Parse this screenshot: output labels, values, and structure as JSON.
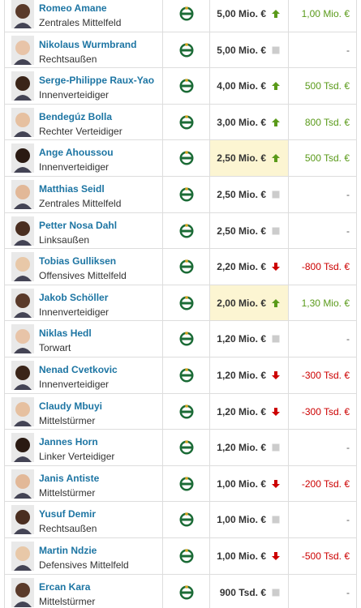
{
  "table": {
    "rows": [
      {
        "name": "Romeo Amane",
        "position": "Zentrales Mittelfeld",
        "value": "5,00 Mio. €",
        "trend": "up",
        "change": "1,00 Mio. €"
      },
      {
        "name": "Nikolaus Wurmbrand",
        "position": "Rechtsaußen",
        "value": "5,00 Mio. €",
        "trend": "none",
        "change": "-"
      },
      {
        "name": "Serge-Philippe Raux-Yao",
        "position": "Innenverteidiger",
        "value": "4,00 Mio. €",
        "trend": "up",
        "change": "500 Tsd. €"
      },
      {
        "name": "Bendegúz Bolla",
        "position": "Rechter Verteidiger",
        "value": "3,00 Mio. €",
        "trend": "up",
        "change": "800 Tsd. €"
      },
      {
        "name": "Ange Ahoussou",
        "position": "Innenverteidiger",
        "value": "2,50 Mio. €",
        "trend": "up",
        "change": "500 Tsd. €",
        "highlight": true
      },
      {
        "name": "Matthias Seidl",
        "position": "Zentrales Mittelfeld",
        "value": "2,50 Mio. €",
        "trend": "none",
        "change": "-"
      },
      {
        "name": "Petter Nosa Dahl",
        "position": "Linksaußen",
        "value": "2,50 Mio. €",
        "trend": "none",
        "change": "-"
      },
      {
        "name": "Tobias Gulliksen",
        "position": "Offensives Mittelfeld",
        "value": "2,20 Mio. €",
        "trend": "down",
        "change": "-800 Tsd. €"
      },
      {
        "name": "Jakob Schöller",
        "position": "Innenverteidiger",
        "value": "2,00 Mio. €",
        "trend": "up",
        "change": "1,30 Mio. €",
        "highlight": true
      },
      {
        "name": "Niklas Hedl",
        "position": "Torwart",
        "value": "1,20 Mio. €",
        "trend": "none",
        "change": "-"
      },
      {
        "name": "Nenad Cvetkovic",
        "position": "Innenverteidiger",
        "value": "1,20 Mio. €",
        "trend": "down",
        "change": "-300 Tsd. €"
      },
      {
        "name": "Claudy Mbuyi",
        "position": "Mittelstürmer",
        "value": "1,20 Mio. €",
        "trend": "down",
        "change": "-300 Tsd. €"
      },
      {
        "name": "Jannes Horn",
        "position": "Linker Verteidiger",
        "value": "1,20 Mio. €",
        "trend": "none",
        "change": "-"
      },
      {
        "name": "Janis Antiste",
        "position": "Mittelstürmer",
        "value": "1,00 Mio. €",
        "trend": "down",
        "change": "-200 Tsd. €"
      },
      {
        "name": "Yusuf Demir",
        "position": "Rechtsaußen",
        "value": "1,00 Mio. €",
        "trend": "none",
        "change": "-"
      },
      {
        "name": "Martin Ndzie",
        "position": "Defensives Mittelfeld",
        "value": "1,00 Mio. €",
        "trend": "down",
        "change": "-500 Tsd. €"
      },
      {
        "name": "Ercan Kara",
        "position": "Mittelstürmer",
        "value": "900 Tsd. €",
        "trend": "none",
        "change": "-"
      }
    ]
  }
}
